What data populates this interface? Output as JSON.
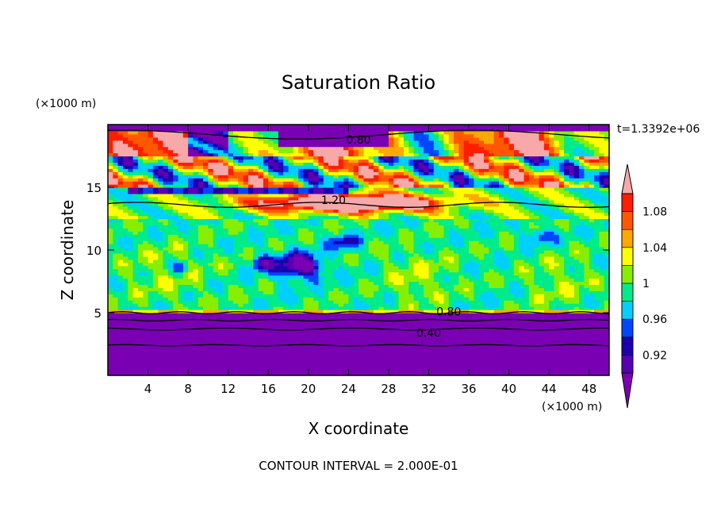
{
  "chart_data": {
    "type": "heatmap",
    "title": "Saturation Ratio",
    "xlabel": "X coordinate",
    "ylabel": "Z coordinate",
    "x_unit": "(×1000 m)",
    "y_unit": "(×1000 m)",
    "time_label": "t=1.3392e+06",
    "footer": "CONTOUR INTERVAL = 2.000E-01",
    "xlim": [
      0,
      50
    ],
    "ylim": [
      0,
      20
    ],
    "x_ticks": [
      4,
      8,
      12,
      16,
      20,
      24,
      28,
      32,
      36,
      40,
      44,
      48
    ],
    "y_ticks": [
      5,
      10,
      15
    ],
    "colorbar": {
      "levels": [
        0.9,
        0.92,
        0.94,
        0.96,
        0.98,
        1.0,
        1.02,
        1.04,
        1.06,
        1.08,
        1.1
      ],
      "tick_labels": [
        "0.92",
        "0.96",
        "1",
        "1.04",
        "1.08"
      ],
      "tick_values": [
        0.92,
        0.96,
        1.0,
        1.04,
        1.08
      ],
      "colors": [
        "#5a00b4",
        "#1c00b0",
        "#0046ff",
        "#00cfff",
        "#00ec8a",
        "#88ee00",
        "#ffff00",
        "#ffa800",
        "#ff5800",
        "#ff1e00",
        "#f7a8a8"
      ],
      "under_color": "#7a00b4",
      "over_color": "#f7a8a8"
    },
    "contour_labels": [
      {
        "text": "0.80",
        "x": 25,
        "y": 18.8
      },
      {
        "text": "1.20",
        "x": 22.5,
        "y": 14.0
      },
      {
        "text": "0.80",
        "x": 34,
        "y": 5.1
      },
      {
        "text": "0.40",
        "x": 32,
        "y": 3.4
      }
    ]
  }
}
